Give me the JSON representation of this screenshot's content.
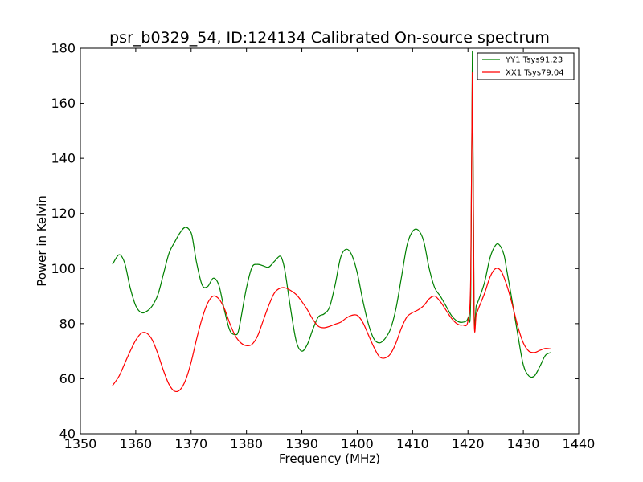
{
  "chart_data": {
    "type": "line",
    "title": "psr_b0329_54, ID:124134 Calibrated On-source spectrum",
    "xlabel": "Frequency (MHz)",
    "ylabel": "Power in Kelvin",
    "xlim": [
      1350,
      1440
    ],
    "ylim": [
      40,
      180
    ],
    "x_ticks": [
      "1350",
      "1360",
      "1370",
      "1380",
      "1390",
      "1400",
      "1410",
      "1420",
      "1430",
      "1440"
    ],
    "y_ticks": [
      "40",
      "60",
      "80",
      "100",
      "120",
      "140",
      "160",
      "180"
    ],
    "grid": false,
    "legend_position": "top-right",
    "series": [
      {
        "name": "YY1 Tsys91.23",
        "color": "#008000",
        "x": [
          1355.8,
          1357,
          1358,
          1359,
          1360,
          1361,
          1362,
          1363,
          1364,
          1365,
          1366,
          1367,
          1368,
          1369,
          1370,
          1370.5,
          1371,
          1372,
          1373,
          1374,
          1375,
          1376,
          1377,
          1378,
          1378.5,
          1379,
          1380,
          1381,
          1382,
          1383,
          1384,
          1385,
          1386,
          1386.5,
          1387,
          1388,
          1389,
          1390,
          1391,
          1392,
          1393,
          1394,
          1395,
          1396,
          1397,
          1398,
          1399,
          1400,
          1401,
          1402,
          1403,
          1404,
          1405,
          1406,
          1407,
          1408,
          1409,
          1410,
          1411,
          1412,
          1413,
          1414,
          1415,
          1416,
          1417,
          1418,
          1419,
          1420,
          1420.5,
          1420.8,
          1421.1,
          1421.5,
          1422,
          1423,
          1424,
          1425,
          1425.7,
          1426.5,
          1427,
          1428,
          1429,
          1430,
          1431,
          1432,
          1433,
          1434,
          1435
        ],
        "values": [
          101.5,
          105,
          102,
          93,
          86.5,
          84,
          84.5,
          86.5,
          90.5,
          98,
          105.5,
          109.5,
          113,
          115,
          113,
          108,
          102,
          94,
          93.5,
          96.5,
          94,
          85,
          77.5,
          76,
          77,
          82,
          93,
          100.5,
          101.5,
          101,
          100.5,
          102.5,
          104.5,
          103,
          98.5,
          85,
          73.5,
          70,
          72.5,
          78,
          82.5,
          83.5,
          86,
          94,
          104,
          107,
          105,
          98.5,
          88.5,
          80,
          74.5,
          73,
          74.5,
          78,
          85.5,
          97,
          108.5,
          113.5,
          114,
          110,
          100,
          93,
          90,
          86.5,
          83,
          81,
          80.5,
          82,
          90,
          179,
          86,
          86.5,
          89,
          95,
          104,
          108.5,
          108.5,
          105,
          99.5,
          88,
          76,
          65,
          61,
          61,
          64.5,
          68.5,
          69.5
        ]
      },
      {
        "name": "XX1 Tsys79.04",
        "color": "#ff0000",
        "x": [
          1355.8,
          1357,
          1358,
          1359,
          1360,
          1361,
          1362,
          1363,
          1364,
          1365,
          1366,
          1367,
          1368,
          1369,
          1370,
          1371,
          1372,
          1373,
          1374,
          1375,
          1376,
          1377,
          1378,
          1379,
          1380,
          1381,
          1382,
          1383,
          1384,
          1385,
          1386,
          1387,
          1388,
          1389,
          1390,
          1391,
          1392,
          1393,
          1394,
          1395,
          1396,
          1397,
          1398,
          1399,
          1400,
          1401,
          1402,
          1403,
          1404,
          1405,
          1406,
          1407,
          1408,
          1409,
          1410,
          1411,
          1412,
          1413,
          1414,
          1415,
          1416,
          1417,
          1418,
          1419,
          1420,
          1420.5,
          1420.8,
          1421.1,
          1421.5,
          1422,
          1423,
          1424,
          1425,
          1426,
          1427,
          1428,
          1429,
          1430,
          1431,
          1432,
          1433,
          1434,
          1435
        ],
        "values": [
          57.5,
          61,
          65.5,
          70,
          74,
          76.5,
          76.5,
          74,
          69,
          63,
          58,
          55.5,
          56,
          59.5,
          66,
          74.5,
          82,
          87.5,
          90,
          89,
          85.5,
          80,
          75.5,
          73,
          72,
          72.5,
          75.5,
          81,
          86.5,
          91,
          92.8,
          93,
          92,
          90.5,
          88,
          85,
          81.5,
          79,
          78.5,
          79,
          79.8,
          80.5,
          82,
          83,
          83,
          80.5,
          76,
          71.5,
          68,
          67.5,
          69,
          73,
          78.5,
          82.5,
          84,
          85,
          86.5,
          89,
          90,
          88,
          85,
          82,
          80,
          79.5,
          81,
          97,
          171,
          83.5,
          83.5,
          86,
          91,
          97,
          100,
          99,
          94,
          87,
          79,
          73,
          70,
          69.5,
          70.3,
          71,
          70.8
        ]
      }
    ]
  }
}
